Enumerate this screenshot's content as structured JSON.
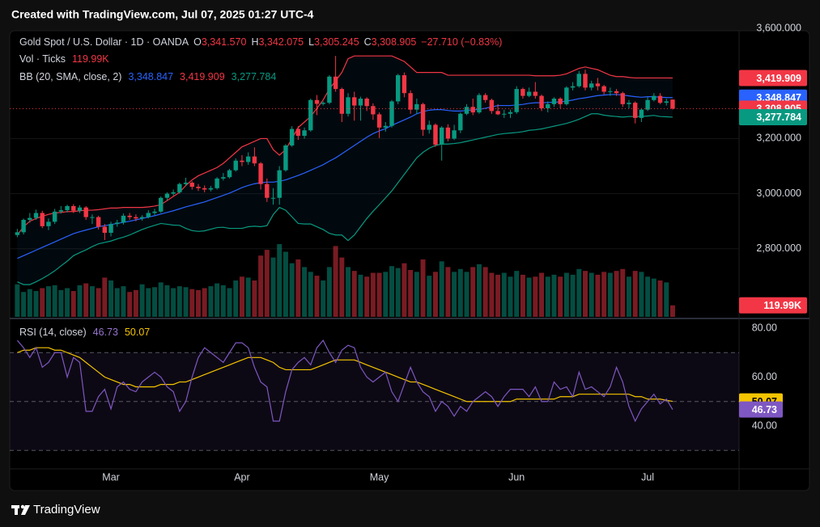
{
  "header": {
    "title": "Created with TradingView.com, Jul 07, 2025 01:27 UTC-4"
  },
  "footer": {
    "brand": "TradingView"
  },
  "chart_data": {
    "type": "candlestick",
    "categories": [
      null,
      null,
      null,
      null,
      null,
      null,
      null,
      null,
      null,
      null,
      null,
      null,
      null,
      null,
      null,
      "Mar",
      null,
      null,
      null,
      null,
      null,
      null,
      null,
      null,
      null,
      null,
      null,
      null,
      null,
      null,
      null,
      null,
      null,
      null,
      null,
      null,
      "Apr",
      null,
      null,
      null,
      null,
      null,
      null,
      null,
      null,
      null,
      null,
      null,
      null,
      null,
      null,
      null,
      null,
      null,
      null,
      null,
      null,
      null,
      "May",
      null,
      null,
      null,
      null,
      null,
      null,
      null,
      null,
      null,
      null,
      null,
      null,
      null,
      null,
      null,
      null,
      null,
      null,
      null,
      null,
      null,
      "Jun",
      null,
      null,
      null,
      null,
      null,
      null,
      null,
      null,
      null,
      null,
      null,
      null,
      null,
      null,
      null,
      null,
      null,
      null,
      null,
      null,
      "Jul",
      null,
      null,
      null,
      null
    ],
    "open": [
      2850,
      2860,
      2905,
      2912,
      2930,
      2882,
      2898,
      2935,
      2940,
      2955,
      2938,
      2950,
      2915,
      2915,
      2880,
      2858,
      2890,
      2895,
      2920,
      2915,
      2910,
      2915,
      2930,
      2935,
      2985,
      3000,
      3005,
      3035,
      3040,
      3025,
      3020,
      3015,
      3020,
      3055,
      3060,
      3085,
      3120,
      3115,
      3135,
      3110,
      3035,
      2985,
      2985,
      3085,
      3175,
      3235,
      3210,
      3230,
      3340,
      3326,
      3330,
      3425,
      3380,
      3290,
      3350,
      3320,
      3345,
      3318,
      3288,
      3240,
      3246,
      3335,
      3430,
      3365,
      3305,
      3325,
      3232,
      3250,
      3178,
      3240,
      3200,
      3230,
      3290,
      3315,
      3295,
      3358,
      3340,
      3300,
      3288,
      3290,
      3296,
      3380,
      3355,
      3370,
      3355,
      3310,
      3325,
      3345,
      3325,
      3385,
      3390,
      3435,
      3385,
      3400,
      3390,
      3370,
      3372,
      3365,
      3325,
      3330,
      3275,
      3305,
      3340,
      3355,
      3330,
      3341.57
    ],
    "high": [
      2872,
      2910,
      2930,
      2942,
      2938,
      2910,
      2945,
      2955,
      2960,
      2962,
      2958,
      2955,
      2925,
      2920,
      2890,
      2898,
      2905,
      2928,
      2930,
      2925,
      2922,
      2940,
      2945,
      2990,
      3005,
      3015,
      3040,
      3058,
      3045,
      3035,
      3030,
      3028,
      3060,
      3075,
      3090,
      3128,
      3140,
      3150,
      3168,
      3115,
      3055,
      3020,
      3100,
      3180,
      3245,
      3245,
      3240,
      3345,
      3358,
      3335,
      3430,
      3500,
      3385,
      3365,
      3370,
      3352,
      3350,
      3328,
      3295,
      3260,
      3340,
      3435,
      3440,
      3375,
      3345,
      3330,
      3265,
      3255,
      3245,
      3252,
      3250,
      3295,
      3325,
      3345,
      3365,
      3365,
      3345,
      3325,
      3305,
      3305,
      3390,
      3385,
      3385,
      3405,
      3360,
      3335,
      3350,
      3350,
      3390,
      3405,
      3445,
      3450,
      3410,
      3420,
      3395,
      3385,
      3380,
      3370,
      3340,
      3335,
      3310,
      3350,
      3365,
      3365,
      3345,
      3342.075
    ],
    "low": [
      2842,
      2852,
      2895,
      2905,
      2875,
      2868,
      2890,
      2928,
      2932,
      2930,
      2930,
      2905,
      2890,
      2870,
      2832,
      2845,
      2880,
      2888,
      2905,
      2900,
      2902,
      2910,
      2922,
      2930,
      2975,
      2992,
      3000,
      3028,
      3015,
      3010,
      3005,
      3008,
      3015,
      3048,
      3055,
      3080,
      3100,
      3105,
      3100,
      3015,
      2970,
      2960,
      2960,
      3080,
      3170,
      3195,
      3200,
      3225,
      3285,
      3320,
      3325,
      3370,
      3260,
      3280,
      3265,
      3265,
      3300,
      3268,
      3202,
      3225,
      3240,
      3325,
      3350,
      3290,
      3290,
      3210,
      3218,
      3170,
      3120,
      3190,
      3195,
      3220,
      3285,
      3285,
      3290,
      3330,
      3290,
      3285,
      3275,
      3275,
      3290,
      3345,
      3350,
      3345,
      3300,
      3295,
      3315,
      3310,
      3320,
      3375,
      3385,
      3375,
      3375,
      3375,
      3360,
      3355,
      3355,
      3315,
      3310,
      3255,
      3260,
      3300,
      3335,
      3325,
      3320,
      3305.245
    ],
    "close": [
      2860,
      2905,
      2912,
      2930,
      2882,
      2898,
      2935,
      2940,
      2955,
      2938,
      2950,
      2915,
      2915,
      2880,
      2858,
      2890,
      2895,
      2920,
      2915,
      2910,
      2915,
      2930,
      2935,
      2985,
      3000,
      3005,
      3035,
      3040,
      3025,
      3020,
      3015,
      3020,
      3055,
      3060,
      3085,
      3120,
      3115,
      3135,
      3110,
      3035,
      2985,
      2985,
      3085,
      3175,
      3235,
      3210,
      3230,
      3340,
      3326,
      3330,
      3425,
      3380,
      3290,
      3350,
      3320,
      3345,
      3318,
      3288,
      3240,
      3246,
      3335,
      3430,
      3365,
      3305,
      3325,
      3232,
      3250,
      3178,
      3240,
      3200,
      3230,
      3290,
      3315,
      3295,
      3358,
      3340,
      3300,
      3288,
      3290,
      3296,
      3380,
      3355,
      3370,
      3355,
      3310,
      3325,
      3345,
      3325,
      3385,
      3390,
      3435,
      3385,
      3400,
      3390,
      3370,
      3372,
      3365,
      3325,
      3330,
      3275,
      3305,
      3340,
      3355,
      3330,
      3335,
      3308.905
    ],
    "up_color": "#089981",
    "down_color": "#f23645",
    "ylim": [
      2550,
      3615
    ],
    "yticks": [
      {
        "value": 2800,
        "label": "2,800.000"
      },
      {
        "value": 3000,
        "label": "3,000.000"
      },
      {
        "value": 3200,
        "label": "3,200.000"
      },
      {
        "value": 3600,
        "label": "3,600.000"
      }
    ],
    "legend": {
      "symbol": "Gold Spot / U.S. Dollar · 1D · OANDA",
      "ohlc": [
        {
          "key": "O",
          "value": "3,341.570"
        },
        {
          "key": "H",
          "value": "3,342.075"
        },
        {
          "key": "L",
          "value": "3,305.245"
        },
        {
          "key": "C",
          "value": "3,308.905"
        }
      ],
      "change": "−27.710 (−0.83%)"
    },
    "volume": {
      "name": "Vol · Ticks",
      "last_label": "119.99K",
      "values": [
        340,
        260,
        290,
        270,
        300,
        320,
        330,
        280,
        300,
        270,
        330,
        350,
        320,
        300,
        410,
        380,
        300,
        320,
        260,
        280,
        340,
        300,
        310,
        360,
        330,
        300,
        320,
        310,
        290,
        280,
        300,
        320,
        350,
        330,
        300,
        380,
        420,
        410,
        380,
        640,
        700,
        620,
        760,
        680,
        560,
        600,
        520,
        470,
        430,
        380,
        520,
        740,
        620,
        520,
        480,
        440,
        420,
        460,
        460,
        470,
        530,
        510,
        560,
        490,
        470,
        600,
        430,
        470,
        580,
        520,
        470,
        500,
        470,
        520,
        550,
        520,
        460,
        440,
        460,
        420,
        480,
        440,
        410,
        420,
        460,
        420,
        440,
        420,
        460,
        440,
        500,
        480,
        460,
        440,
        470,
        460,
        480,
        500,
        420,
        480,
        470,
        420,
        400,
        380,
        360,
        119.99
      ]
    },
    "bands": {
      "name": "BB (20, SMA, close, 2)",
      "fill_color": "#2196f3",
      "middle": {
        "color": "#2962ff",
        "label": "3,348.847",
        "values": [
          2765,
          2775,
          2785,
          2795,
          2805,
          2815,
          2825,
          2835,
          2845,
          2855,
          2862,
          2868,
          2874,
          2880,
          2884,
          2888,
          2892,
          2896,
          2900,
          2905,
          2910,
          2915,
          2920,
          2926,
          2932,
          2938,
          2945,
          2952,
          2958,
          2964,
          2970,
          2978,
          2986,
          2994,
          3002,
          3012,
          3022,
          3030,
          3036,
          3040,
          3042,
          3042,
          3045,
          3050,
          3058,
          3066,
          3075,
          3085,
          3095,
          3105,
          3118,
          3130,
          3145,
          3160,
          3175,
          3190,
          3205,
          3218,
          3228,
          3236,
          3248,
          3258,
          3268,
          3278,
          3290,
          3298,
          3303,
          3305,
          3305,
          3302,
          3300,
          3300,
          3302,
          3304,
          3306,
          3310,
          3315,
          3320,
          3320,
          3320,
          3322,
          3324,
          3328,
          3330,
          3330,
          3331,
          3332,
          3333,
          3336,
          3340,
          3345,
          3348,
          3352,
          3356,
          3358,
          3360,
          3360,
          3358,
          3355,
          3352,
          3350,
          3352,
          3352,
          3350,
          3349,
          3348.847
        ]
      },
      "upper": {
        "color": "#f23645",
        "label": "3,419.909",
        "values": [
          2850,
          2880,
          2900,
          2910,
          2918,
          2925,
          2930,
          2932,
          2935,
          2935,
          2938,
          2940,
          2940,
          2942,
          2945,
          2948,
          2948,
          2950,
          2950,
          2950,
          2950,
          2952,
          2955,
          2960,
          2975,
          2990,
          3005,
          3030,
          3050,
          3065,
          3075,
          3085,
          3095,
          3110,
          3130,
          3150,
          3170,
          3180,
          3190,
          3200,
          3200,
          3160,
          3140,
          3160,
          3200,
          3240,
          3260,
          3280,
          3310,
          3340,
          3380,
          3410,
          3440,
          3490,
          3500,
          3500,
          3500,
          3500,
          3500,
          3500,
          3500,
          3490,
          3480,
          3460,
          3440,
          3440,
          3440,
          3440,
          3440,
          3430,
          3430,
          3430,
          3430,
          3430,
          3430,
          3430,
          3430,
          3430,
          3430,
          3430,
          3430,
          3430,
          3430,
          3428,
          3428,
          3428,
          3428,
          3430,
          3435,
          3445,
          3455,
          3460,
          3455,
          3450,
          3440,
          3430,
          3425,
          3425,
          3422,
          3420,
          3420,
          3420,
          3420,
          3420,
          3420,
          3419.909
        ]
      },
      "lower": {
        "color": "#089981",
        "label": "3,277.784",
        "values": [
          2680,
          2670,
          2670,
          2680,
          2692,
          2705,
          2720,
          2738,
          2755,
          2775,
          2786,
          2796,
          2808,
          2818,
          2823,
          2828,
          2836,
          2842,
          2850,
          2860,
          2870,
          2878,
          2885,
          2892,
          2889,
          2886,
          2885,
          2874,
          2866,
          2863,
          2865,
          2871,
          2877,
          2878,
          2874,
          2874,
          2874,
          2880,
          2882,
          2880,
          2884,
          2924,
          2950,
          2940,
          2916,
          2892,
          2890,
          2890,
          2880,
          2870,
          2856,
          2850,
          2850,
          2830,
          2850,
          2880,
          2910,
          2936,
          2960,
          2985,
          3010,
          3040,
          3070,
          3100,
          3130,
          3150,
          3165,
          3175,
          3180,
          3180,
          3182,
          3185,
          3190,
          3195,
          3200,
          3205,
          3210,
          3215,
          3218,
          3220,
          3222,
          3225,
          3230,
          3232,
          3235,
          3240,
          3245,
          3250,
          3255,
          3262,
          3270,
          3280,
          3290,
          3290,
          3285,
          3282,
          3280,
          3278,
          3280,
          3280,
          3280,
          3282,
          3284,
          3280,
          3279,
          3277.784
        ]
      }
    },
    "rsi": {
      "name": "RSI (14, close)",
      "ylim": [
        22.5,
        83.3
      ],
      "yticks": [
        {
          "value": 80,
          "label": "80.00"
        },
        {
          "value": 60,
          "label": "60.00"
        },
        {
          "value": 40,
          "label": "40.00"
        }
      ],
      "levels": [
        70,
        50,
        30
      ],
      "fill_color": "#7e57c2",
      "line": {
        "color": "#7e57c2",
        "label": "46.73",
        "values": [
          75,
          72,
          68,
          72,
          64,
          66,
          70,
          70,
          60,
          68,
          66,
          46,
          46,
          52,
          55,
          47,
          56,
          58,
          55,
          54,
          58,
          60,
          62,
          60,
          56,
          54,
          46,
          50,
          60,
          68,
          72,
          70,
          68,
          66,
          70,
          74,
          74,
          72,
          64,
          58,
          56,
          42,
          42,
          54,
          63,
          66,
          68,
          65,
          72,
          75,
          70,
          66,
          71,
          73,
          72,
          64,
          60,
          58,
          60,
          62,
          54,
          50,
          57,
          64,
          58,
          54,
          52,
          46,
          50,
          48,
          44,
          48,
          46,
          50,
          52,
          54,
          52,
          48,
          52,
          55,
          55,
          55,
          52,
          56,
          50,
          50,
          58,
          55,
          56,
          52,
          62,
          55,
          56,
          54,
          52,
          56,
          64,
          58,
          48,
          42,
          47,
          50,
          53,
          49,
          51,
          46.73
        ]
      },
      "ma": {
        "color": "#f5c400",
        "label": "50.07",
        "values": [
          70,
          71,
          71,
          72,
          72,
          72,
          71,
          71,
          70,
          69,
          68,
          66,
          64,
          62,
          60,
          59,
          58,
          57,
          57,
          56,
          56,
          56,
          56,
          57,
          57,
          57,
          58,
          58,
          59,
          60,
          61,
          62,
          63,
          64,
          65,
          66,
          67,
          68,
          68,
          68,
          67,
          66,
          64,
          63,
          63,
          63,
          63,
          63,
          64,
          65,
          66,
          67,
          67,
          67,
          67,
          66,
          65,
          64,
          63,
          62,
          61,
          60,
          59,
          58,
          58,
          57,
          56,
          55,
          54,
          53,
          52,
          51,
          50,
          50,
          50,
          50,
          50,
          50,
          50,
          50,
          51,
          51,
          51,
          51,
          51,
          51,
          51,
          52,
          52,
          52,
          53,
          53,
          53,
          53,
          53,
          53,
          53,
          53,
          53,
          52,
          52,
          51,
          51,
          51,
          50.5,
          50.07
        ]
      }
    }
  }
}
